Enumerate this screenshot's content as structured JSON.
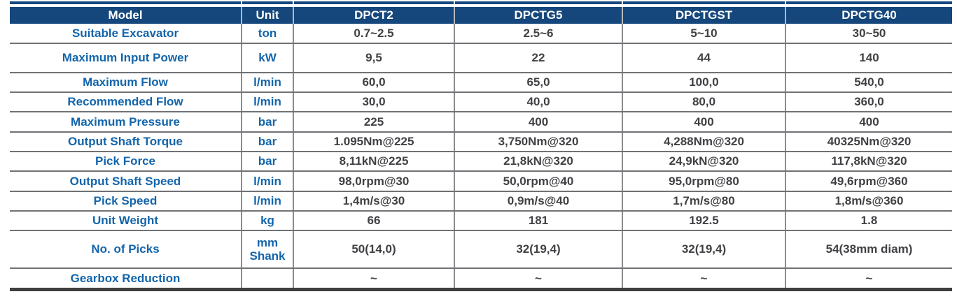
{
  "table": {
    "header": {
      "model": "Model",
      "unit": "Unit",
      "columns": [
        "DPCT2",
        "DPCTG5",
        "DPCTGST",
        "DPCTG40"
      ]
    },
    "rows": [
      {
        "label": "Suitable Excavator",
        "unit": "ton",
        "values": [
          "0.7~2.5",
          "2.5~6",
          "5~10",
          "30~50"
        ]
      },
      {
        "label": "Maximum Input Power",
        "unit": "kW",
        "values": [
          "9,5",
          "22",
          "44",
          "140"
        ]
      },
      {
        "label": "Maximum Flow",
        "unit": "l/min",
        "values": [
          "60,0",
          "65,0",
          "100,0",
          "540,0"
        ]
      },
      {
        "label": "Recommended Flow",
        "unit": "l/min",
        "values": [
          "30,0",
          "40,0",
          "80,0",
          "360,0"
        ]
      },
      {
        "label": "Maximum Pressure",
        "unit": "bar",
        "values": [
          "225",
          "400",
          "400",
          "400"
        ]
      },
      {
        "label": "Output Shaft Torque",
        "unit": "bar",
        "values": [
          "1.095Nm@225",
          "3,750Nm@320",
          "4,288Nm@320",
          "40325Nm@320"
        ]
      },
      {
        "label": "Pick Force",
        "unit": "bar",
        "values": [
          "8,11kN@225",
          "21,8kN@320",
          "24,9kN@320",
          "117,8kN@320"
        ]
      },
      {
        "label": "Output Shaft Speed",
        "unit": "l/min",
        "values": [
          "98,0rpm@30",
          "50,0rpm@40",
          "95,0rpm@80",
          "49,6rpm@360"
        ]
      },
      {
        "label": "Pick Speed",
        "unit": "l/min",
        "values": [
          "1,4m/s@30",
          "0,9m/s@40",
          "1,7m/s@80",
          "1,8m/s@360"
        ]
      },
      {
        "label": "Unit Weight",
        "unit": "kg",
        "values": [
          "66",
          "181",
          "192.5",
          "1.8"
        ]
      },
      {
        "label": "No. of Picks",
        "unit": "mm Shank",
        "values": [
          "50(14,0)",
          "32(19,4)",
          "32(19,4)",
          "54(38mm diam)"
        ]
      },
      {
        "label": "Gearbox Reduction",
        "unit": "",
        "values": [
          "~",
          "~",
          "~",
          "~"
        ]
      }
    ],
    "colors": {
      "header_bg": "#15477d",
      "label_blue": "#1365ab",
      "value_gray": "#414145",
      "divider_gray": "#8a8c8f",
      "bottom_bar": "#3d3e40"
    }
  }
}
